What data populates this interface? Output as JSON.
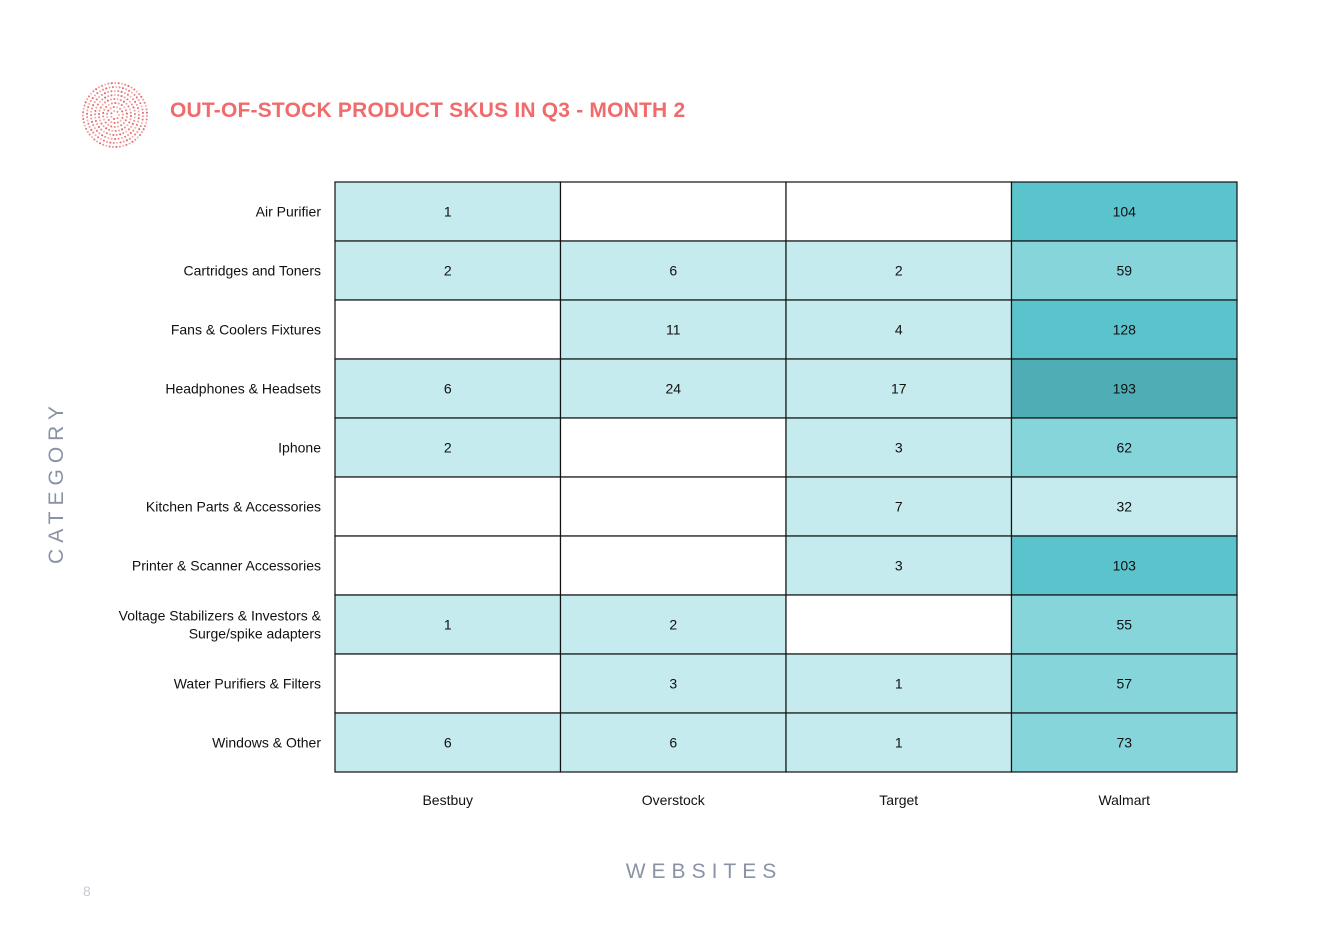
{
  "page": {
    "number": "8"
  },
  "colors": {
    "title": "#f06b6b",
    "axis_title": "#8a93a6",
    "logo": "#e45a5a",
    "scale": [
      "#ffffff",
      "#c5ebee",
      "#86d5db",
      "#5ac3cc",
      "#4fadb6"
    ]
  },
  "icons": {
    "logo": "dotted-circle-logo-icon"
  },
  "chart_data": {
    "type": "heatmap",
    "title": "OUT-OF-STOCK PRODUCT SKUS IN Q3 - MONTH 2",
    "xlabel": "WEBSITES",
    "ylabel": "CATEGORY",
    "x": [
      "Bestbuy",
      "Overstock",
      "Target",
      "Walmart"
    ],
    "y": [
      "Air Purifier",
      "Cartridges and Toners",
      "Fans & Coolers Fixtures",
      "Headphones & Headsets",
      "Iphone",
      "Kitchen Parts & Accessories",
      "Printer & Scanner Accessories",
      "Voltage Stabilizers & Investors & Surge/spike adapters",
      "Water Purifiers & Filters",
      "Windows & Other"
    ],
    "values": [
      [
        1,
        null,
        null,
        104
      ],
      [
        2,
        6,
        2,
        59
      ],
      [
        null,
        11,
        4,
        128
      ],
      [
        6,
        24,
        17,
        193
      ],
      [
        2,
        null,
        3,
        62
      ],
      [
        null,
        null,
        7,
        32
      ],
      [
        null,
        null,
        3,
        103
      ],
      [
        1,
        2,
        null,
        55
      ],
      [
        null,
        3,
        1,
        57
      ],
      [
        6,
        6,
        1,
        73
      ]
    ],
    "grid": true,
    "legend": "none"
  }
}
